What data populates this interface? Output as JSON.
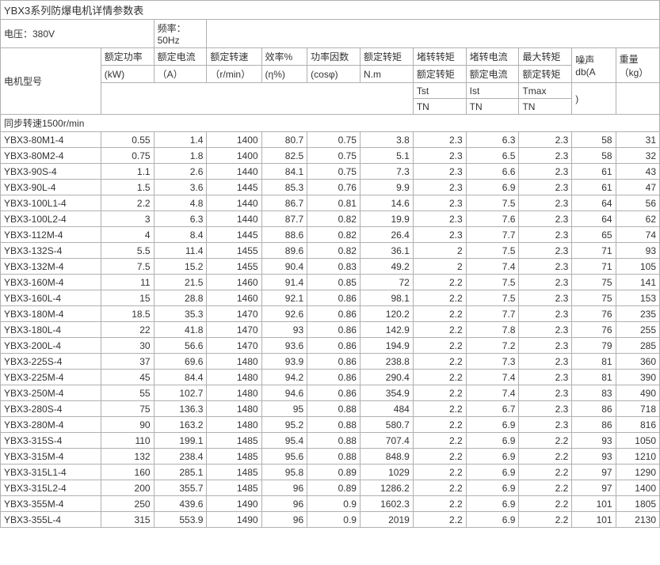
{
  "title": "YBX3系列防爆电机详情参数表",
  "voltage": "电压：380V",
  "frequency_l1": "频率：",
  "frequency_l2": "50Hz",
  "model_header": "电机型号",
  "cols": {
    "power_l1": "额定功率",
    "power_l2": "(kW)",
    "current_l1": "额定电流",
    "current_l2": "（A）",
    "speed_l1": "额定转速",
    "speed_l2": "（r/min）",
    "eff_l1": "效率%",
    "eff_l2": "(η%)",
    "pf_l1": "功率因数",
    "pf_l2": "(cosφ)",
    "torque_l1": "额定转矩",
    "torque_l2": "N.m",
    "tst_l1": "堵转转矩",
    "tst_l2": "额定转矩",
    "tst_l3": "Tst",
    "tst_l4": "TN",
    "ist_l1": "堵转电流",
    "ist_l2": "额定电流",
    "ist_l3": "Ist",
    "ist_l4": "TN",
    "tmax_l1": "最大转矩",
    "tmax_l2": "额定转矩",
    "tmax_l3": "Tmax",
    "tmax_l4": "TN",
    "noise_l1": "噪声",
    "noise_l2": "db(A",
    "noise_l3": ")",
    "weight_l1": "重量",
    "weight_l2": "（kg）"
  },
  "section": "同步转速1500r/min",
  "rows": [
    {
      "m": "YBX3-80M1-4",
      "p": "0.55",
      "i": "1.4",
      "n": "1400",
      "e": "80.7",
      "pf": "0.75",
      "t": "3.8",
      "tst": "2.3",
      "ist": "6.3",
      "tm": "2.3",
      "db": "58",
      "w": "31"
    },
    {
      "m": "YBX3-80M2-4",
      "p": "0.75",
      "i": "1.8",
      "n": "1400",
      "e": "82.5",
      "pf": "0.75",
      "t": "5.1",
      "tst": "2.3",
      "ist": "6.5",
      "tm": "2.3",
      "db": "58",
      "w": "32"
    },
    {
      "m": "YBX3-90S-4",
      "p": "1.1",
      "i": "2.6",
      "n": "1440",
      "e": "84.1",
      "pf": "0.75",
      "t": "7.3",
      "tst": "2.3",
      "ist": "6.6",
      "tm": "2.3",
      "db": "61",
      "w": "43"
    },
    {
      "m": "YBX3-90L-4",
      "p": "1.5",
      "i": "3.6",
      "n": "1445",
      "e": "85.3",
      "pf": "0.76",
      "t": "9.9",
      "tst": "2.3",
      "ist": "6.9",
      "tm": "2.3",
      "db": "61",
      "w": "47"
    },
    {
      "m": "YBX3-100L1-4",
      "p": "2.2",
      "i": "4.8",
      "n": "1440",
      "e": "86.7",
      "pf": "0.81",
      "t": "14.6",
      "tst": "2.3",
      "ist": "7.5",
      "tm": "2.3",
      "db": "64",
      "w": "56"
    },
    {
      "m": "YBX3-100L2-4",
      "p": "3",
      "i": "6.3",
      "n": "1440",
      "e": "87.7",
      "pf": "0.82",
      "t": "19.9",
      "tst": "2.3",
      "ist": "7.6",
      "tm": "2.3",
      "db": "64",
      "w": "62"
    },
    {
      "m": "YBX3-112M-4",
      "p": "4",
      "i": "8.4",
      "n": "1445",
      "e": "88.6",
      "pf": "0.82",
      "t": "26.4",
      "tst": "2.3",
      "ist": "7.7",
      "tm": "2.3",
      "db": "65",
      "w": "74"
    },
    {
      "m": "YBX3-132S-4",
      "p": "5.5",
      "i": "11.4",
      "n": "1455",
      "e": "89.6",
      "pf": "0.82",
      "t": "36.1",
      "tst": "2",
      "ist": "7.5",
      "tm": "2.3",
      "db": "71",
      "w": "93"
    },
    {
      "m": "YBX3-132M-4",
      "p": "7.5",
      "i": "15.2",
      "n": "1455",
      "e": "90.4",
      "pf": "0.83",
      "t": "49.2",
      "tst": "2",
      "ist": "7.4",
      "tm": "2.3",
      "db": "71",
      "w": "105"
    },
    {
      "m": "YBX3-160M-4",
      "p": "11",
      "i": "21.5",
      "n": "1460",
      "e": "91.4",
      "pf": "0.85",
      "t": "72",
      "tst": "2.2",
      "ist": "7.5",
      "tm": "2.3",
      "db": "75",
      "w": "141"
    },
    {
      "m": "YBX3-160L-4",
      "p": "15",
      "i": "28.8",
      "n": "1460",
      "e": "92.1",
      "pf": "0.86",
      "t": "98.1",
      "tst": "2.2",
      "ist": "7.5",
      "tm": "2.3",
      "db": "75",
      "w": "153"
    },
    {
      "m": "YBX3-180M-4",
      "p": "18.5",
      "i": "35.3",
      "n": "1470",
      "e": "92.6",
      "pf": "0.86",
      "t": "120.2",
      "tst": "2.2",
      "ist": "7.7",
      "tm": "2.3",
      "db": "76",
      "w": "235"
    },
    {
      "m": "YBX3-180L-4",
      "p": "22",
      "i": "41.8",
      "n": "1470",
      "e": "93",
      "pf": "0.86",
      "t": "142.9",
      "tst": "2.2",
      "ist": "7.8",
      "tm": "2.3",
      "db": "76",
      "w": "255"
    },
    {
      "m": "YBX3-200L-4",
      "p": "30",
      "i": "56.6",
      "n": "1470",
      "e": "93.6",
      "pf": "0.86",
      "t": "194.9",
      "tst": "2.2",
      "ist": "7.2",
      "tm": "2.3",
      "db": "79",
      "w": "285"
    },
    {
      "m": "YBX3-225S-4",
      "p": "37",
      "i": "69.6",
      "n": "1480",
      "e": "93.9",
      "pf": "0.86",
      "t": "238.8",
      "tst": "2.2",
      "ist": "7.3",
      "tm": "2.3",
      "db": "81",
      "w": "360"
    },
    {
      "m": "YBX3-225M-4",
      "p": "45",
      "i": "84.4",
      "n": "1480",
      "e": "94.2",
      "pf": "0.86",
      "t": "290.4",
      "tst": "2.2",
      "ist": "7.4",
      "tm": "2.3",
      "db": "81",
      "w": "390"
    },
    {
      "m": "YBX3-250M-4",
      "p": "55",
      "i": "102.7",
      "n": "1480",
      "e": "94.6",
      "pf": "0.86",
      "t": "354.9",
      "tst": "2.2",
      "ist": "7.4",
      "tm": "2.3",
      "db": "83",
      "w": "490"
    },
    {
      "m": "YBX3-280S-4",
      "p": "75",
      "i": "136.3",
      "n": "1480",
      "e": "95",
      "pf": "0.88",
      "t": "484",
      "tst": "2.2",
      "ist": "6.7",
      "tm": "2.3",
      "db": "86",
      "w": "718"
    },
    {
      "m": "YBX3-280M-4",
      "p": "90",
      "i": "163.2",
      "n": "1480",
      "e": "95.2",
      "pf": "0.88",
      "t": "580.7",
      "tst": "2.2",
      "ist": "6.9",
      "tm": "2.3",
      "db": "86",
      "w": "816"
    },
    {
      "m": "YBX3-315S-4",
      "p": "110",
      "i": "199.1",
      "n": "1485",
      "e": "95.4",
      "pf": "0.88",
      "t": "707.4",
      "tst": "2.2",
      "ist": "6.9",
      "tm": "2.2",
      "db": "93",
      "w": "1050"
    },
    {
      "m": "YBX3-315M-4",
      "p": "132",
      "i": "238.4",
      "n": "1485",
      "e": "95.6",
      "pf": "0.88",
      "t": "848.9",
      "tst": "2.2",
      "ist": "6.9",
      "tm": "2.2",
      "db": "93",
      "w": "1210"
    },
    {
      "m": "YBX3-315L1-4",
      "p": "160",
      "i": "285.1",
      "n": "1485",
      "e": "95.8",
      "pf": "0.89",
      "t": "1029",
      "tst": "2.2",
      "ist": "6.9",
      "tm": "2.2",
      "db": "97",
      "w": "1290"
    },
    {
      "m": "YBX3-315L2-4",
      "p": "200",
      "i": "355.7",
      "n": "1485",
      "e": "96",
      "pf": "0.89",
      "t": "1286.2",
      "tst": "2.2",
      "ist": "6.9",
      "tm": "2.2",
      "db": "97",
      "w": "1400"
    },
    {
      "m": "YBX3-355M-4",
      "p": "250",
      "i": "439.6",
      "n": "1490",
      "e": "96",
      "pf": "0.9",
      "t": "1602.3",
      "tst": "2.2",
      "ist": "6.9",
      "tm": "2.2",
      "db": "101",
      "w": "1805"
    },
    {
      "m": "YBX3-355L-4",
      "p": "315",
      "i": "553.9",
      "n": "1490",
      "e": "96",
      "pf": "0.9",
      "t": "2019",
      "tst": "2.2",
      "ist": "6.9",
      "tm": "2.2",
      "db": "101",
      "w": "2130"
    }
  ]
}
